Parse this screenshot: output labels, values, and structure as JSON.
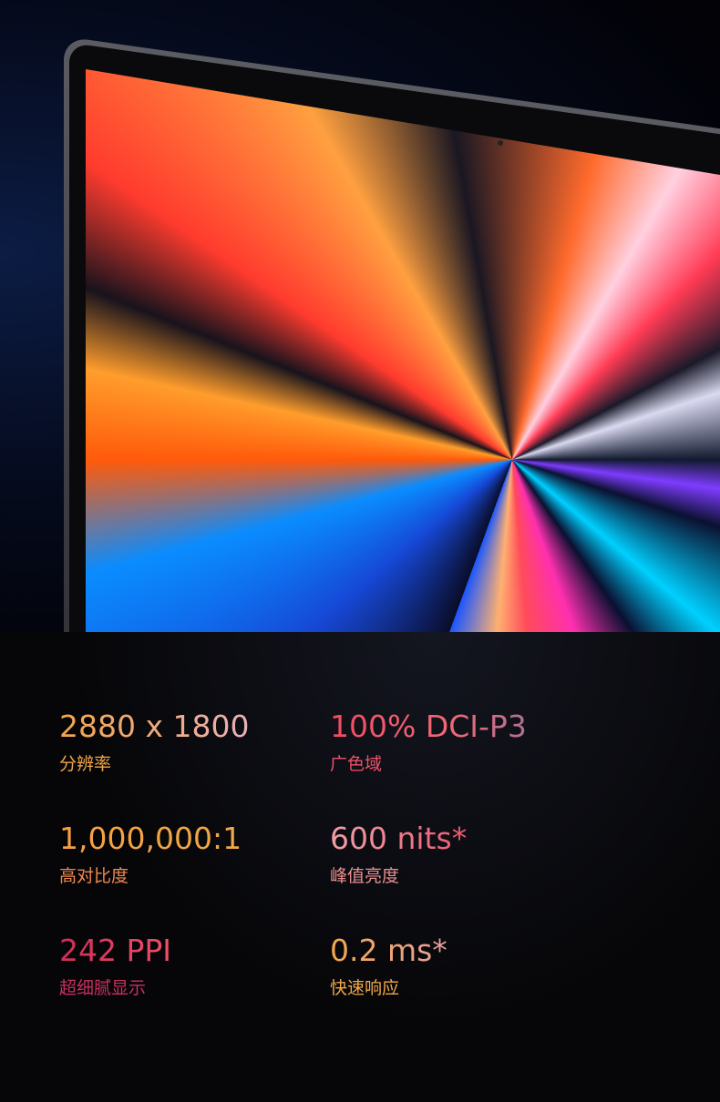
{
  "specs": [
    {
      "value": "2880 x 1800",
      "label": "分辨率"
    },
    {
      "value": "100% DCI-P3",
      "label": "广色域"
    },
    {
      "value": "1,000,000:1",
      "label": "高对比度"
    },
    {
      "value": "600 nits*",
      "label": "峰值亮度"
    },
    {
      "value": "242 PPI",
      "label": "超细腻显示"
    },
    {
      "value": "0.2 ms*",
      "label": "快速响应"
    }
  ],
  "colors": {
    "background": "#050508",
    "orange": "#f0a050",
    "pink": "#e8a0b0",
    "red": "#f0506a",
    "magenta": "#d8305a"
  }
}
